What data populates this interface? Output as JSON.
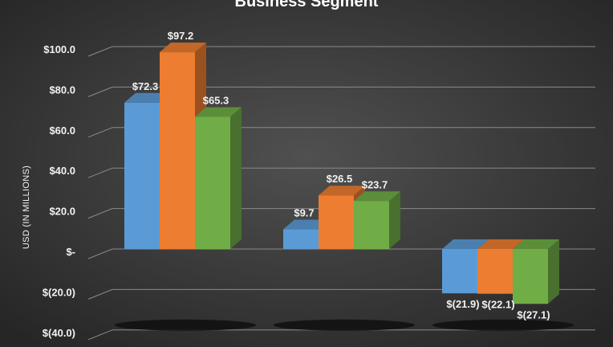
{
  "chart_data": {
    "type": "bar",
    "title": "Business Segment",
    "ylabel": "USD (IN MILLIONS)",
    "xlabel": "",
    "ylim": [
      -40,
      100
    ],
    "yticks": [
      {
        "value": 100,
        "label": "$100.0"
      },
      {
        "value": 80,
        "label": "$80.0"
      },
      {
        "value": 60,
        "label": "$60.0"
      },
      {
        "value": 40,
        "label": "$40.0"
      },
      {
        "value": 20,
        "label": "$20.0"
      },
      {
        "value": 0,
        "label": "$-"
      },
      {
        "value": -20,
        "label": "$(20.0)"
      },
      {
        "value": -40,
        "label": "$(40.0)"
      }
    ],
    "grid": true,
    "categories": [
      "",
      "",
      ""
    ],
    "series": [
      {
        "color": "#5b9bd5",
        "values": [
          72.3,
          9.7,
          -21.9
        ],
        "labels": [
          "$72.3",
          "$9.7",
          "$(21.9)"
        ]
      },
      {
        "color": "#ed7d31",
        "values": [
          97.2,
          26.5,
          -22.1
        ],
        "labels": [
          "$97.2",
          "$26.5",
          "$(22.1)"
        ]
      },
      {
        "color": "#70ad47",
        "values": [
          65.3,
          23.7,
          -27.1
        ],
        "labels": [
          "$65.3",
          "$23.7",
          "$(27.1)"
        ]
      }
    ]
  }
}
